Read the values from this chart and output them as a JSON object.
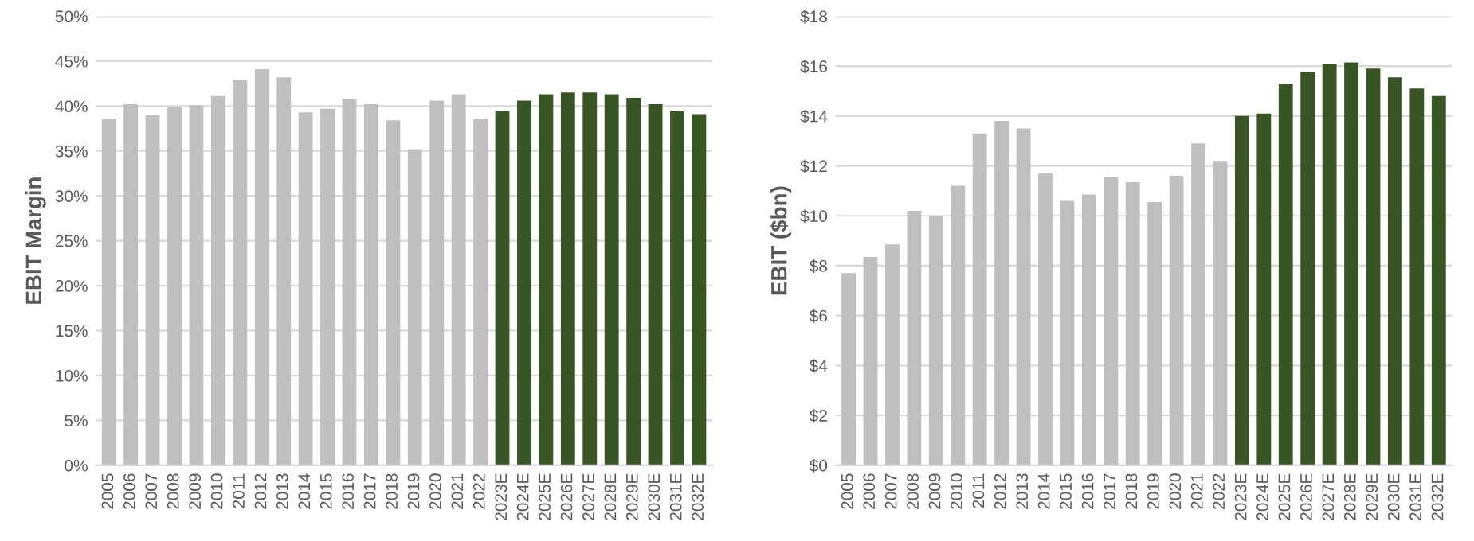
{
  "chart_data": [
    {
      "type": "bar",
      "ylabel": "EBIT Margin",
      "categories": [
        "2005",
        "2006",
        "2007",
        "2008",
        "2009",
        "2010",
        "2011",
        "2012",
        "2013",
        "2014",
        "2015",
        "2016",
        "2017",
        "2018",
        "2019",
        "2020",
        "2021",
        "2022",
        "2023E",
        "2024E",
        "2025E",
        "2026E",
        "2027E",
        "2028E",
        "2029E",
        "2030E",
        "2031E",
        "2032E"
      ],
      "values": [
        38.6,
        40.2,
        39.0,
        39.9,
        40.1,
        41.1,
        42.9,
        44.1,
        43.2,
        39.3,
        39.7,
        40.8,
        40.2,
        38.4,
        35.2,
        40.6,
        41.3,
        38.6,
        39.5,
        40.6,
        41.3,
        41.5,
        41.5,
        41.3,
        40.9,
        40.2,
        39.5,
        39.1
      ],
      "colors": [
        "#bfbfbf",
        "#bfbfbf",
        "#bfbfbf",
        "#bfbfbf",
        "#bfbfbf",
        "#bfbfbf",
        "#bfbfbf",
        "#bfbfbf",
        "#bfbfbf",
        "#bfbfbf",
        "#bfbfbf",
        "#bfbfbf",
        "#bfbfbf",
        "#bfbfbf",
        "#bfbfbf",
        "#bfbfbf",
        "#bfbfbf",
        "#bfbfbf",
        "#375623",
        "#375623",
        "#375623",
        "#375623",
        "#375623",
        "#375623",
        "#375623",
        "#375623",
        "#375623",
        "#375623"
      ],
      "ylim": [
        0,
        50
      ],
      "yticks": [
        {
          "value": 0,
          "label": "0%"
        },
        {
          "value": 5,
          "label": "5%"
        },
        {
          "value": 10,
          "label": "10%"
        },
        {
          "value": 15,
          "label": "15%"
        },
        {
          "value": 20,
          "label": "20%"
        },
        {
          "value": 25,
          "label": "25%"
        },
        {
          "value": 30,
          "label": "30%"
        },
        {
          "value": 35,
          "label": "35%"
        },
        {
          "value": 40,
          "label": "40%"
        },
        {
          "value": 45,
          "label": "45%"
        },
        {
          "value": 50,
          "label": "50%"
        }
      ],
      "grid": "y"
    },
    {
      "type": "bar",
      "ylabel": "EBIT ($bn)",
      "categories": [
        "2005",
        "2006",
        "2007",
        "2008",
        "2009",
        "2010",
        "2011",
        "2012",
        "2013",
        "2014",
        "2015",
        "2016",
        "2017",
        "2018",
        "2019",
        "2020",
        "2021",
        "2022",
        "2023E",
        "2024E",
        "2025E",
        "2026E",
        "2027E",
        "2028E",
        "2029E",
        "2030E",
        "2031E",
        "2032E"
      ],
      "values": [
        7.7,
        8.35,
        8.85,
        10.2,
        10.0,
        11.2,
        13.3,
        13.8,
        13.5,
        11.7,
        10.6,
        10.85,
        11.55,
        11.35,
        10.55,
        11.6,
        12.9,
        12.2,
        14.0,
        14.1,
        15.3,
        15.75,
        16.1,
        16.15,
        15.9,
        15.55,
        15.1,
        14.8
      ],
      "colors": [
        "#bfbfbf",
        "#bfbfbf",
        "#bfbfbf",
        "#bfbfbf",
        "#bfbfbf",
        "#bfbfbf",
        "#bfbfbf",
        "#bfbfbf",
        "#bfbfbf",
        "#bfbfbf",
        "#bfbfbf",
        "#bfbfbf",
        "#bfbfbf",
        "#bfbfbf",
        "#bfbfbf",
        "#bfbfbf",
        "#bfbfbf",
        "#bfbfbf",
        "#375623",
        "#375623",
        "#375623",
        "#375623",
        "#375623",
        "#375623",
        "#375623",
        "#375623",
        "#375623",
        "#375623"
      ],
      "ylim": [
        0,
        18
      ],
      "yticks": [
        {
          "value": 0,
          "label": "$0"
        },
        {
          "value": 2,
          "label": "$2"
        },
        {
          "value": 4,
          "label": "$4"
        },
        {
          "value": 6,
          "label": "$6"
        },
        {
          "value": 8,
          "label": "$8"
        },
        {
          "value": 10,
          "label": "$10"
        },
        {
          "value": 12,
          "label": "$12"
        },
        {
          "value": 14,
          "label": "$14"
        },
        {
          "value": 16,
          "label": "$16"
        },
        {
          "value": 18,
          "label": "$18"
        }
      ],
      "grid": "y"
    }
  ]
}
